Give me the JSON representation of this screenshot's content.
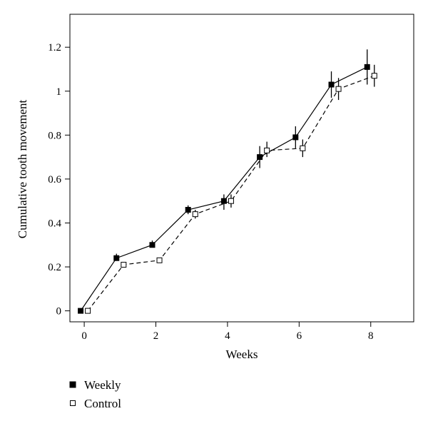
{
  "chart_data": {
    "type": "line",
    "title": "",
    "xlabel": "Weeks",
    "ylabel": "Cumulative tooth movement",
    "xlim": [
      -0.4,
      9.2
    ],
    "ylim": [
      -0.05,
      1.35
    ],
    "xticks": [
      0,
      2,
      4,
      6,
      8
    ],
    "xtick_labels": [
      "0",
      "2",
      "4",
      "6",
      "8"
    ],
    "yticks": [
      0,
      0.2,
      0.4,
      0.6,
      0.8,
      1.0,
      1.2
    ],
    "ytick_labels": [
      "0",
      "0.2",
      "0.4",
      "0.6",
      "0.8",
      "1",
      "1.2"
    ],
    "grid": false,
    "legend_position": "bottom-left",
    "series": [
      {
        "name": "Weekly",
        "marker": "filled-square",
        "line_style": "solid",
        "color": "#000000",
        "x": [
          -0.1,
          0.9,
          1.9,
          2.9,
          3.9,
          4.9,
          5.9,
          6.9,
          7.9
        ],
        "y": [
          0.0,
          0.24,
          0.3,
          0.46,
          0.5,
          0.7,
          0.79,
          1.03,
          1.11
        ],
        "err_low": [
          0.0,
          0.23,
          0.29,
          0.44,
          0.46,
          0.65,
          0.74,
          0.97,
          1.03
        ],
        "err_high": [
          0.0,
          0.26,
          0.32,
          0.48,
          0.53,
          0.75,
          0.84,
          1.09,
          1.19
        ]
      },
      {
        "name": "Control",
        "marker": "open-square",
        "line_style": "dashed",
        "color": "#000000",
        "x": [
          0.1,
          1.1,
          2.1,
          3.1,
          4.1,
          5.1,
          6.1,
          7.1,
          8.1
        ],
        "y": [
          0.0,
          0.21,
          0.23,
          0.44,
          0.5,
          0.73,
          0.74,
          1.01,
          1.07
        ],
        "err_low": [
          0.0,
          0.2,
          0.22,
          0.42,
          0.47,
          0.7,
          0.7,
          0.96,
          1.02
        ],
        "err_high": [
          0.0,
          0.22,
          0.24,
          0.46,
          0.53,
          0.77,
          0.78,
          1.06,
          1.12
        ]
      }
    ]
  }
}
